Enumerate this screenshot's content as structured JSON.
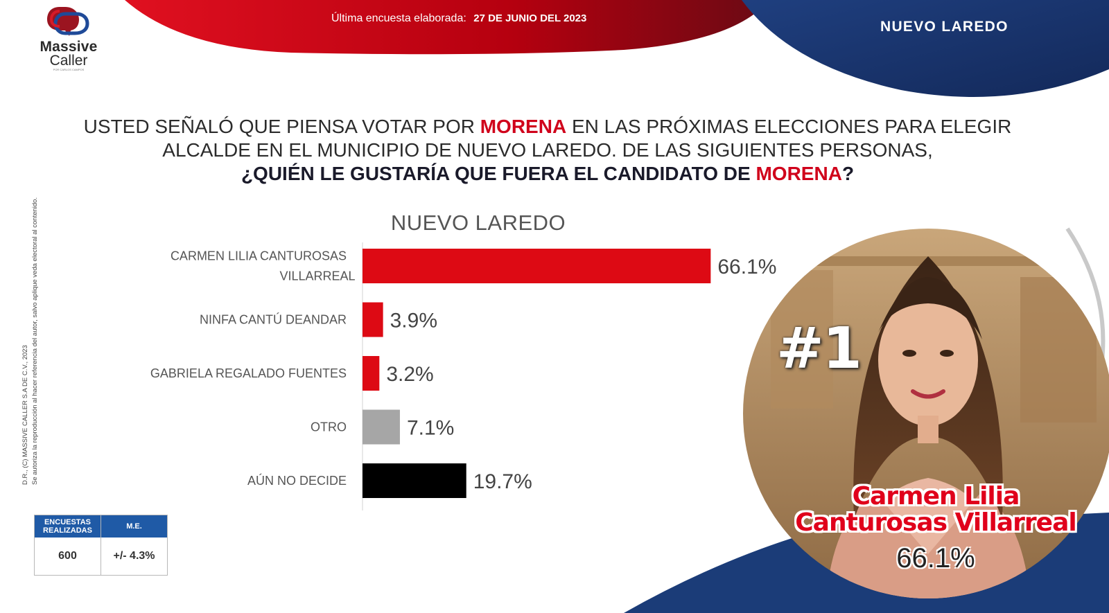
{
  "logo": {
    "line1": "Massive",
    "line2": "Caller",
    "tagline": "POR CARLOS CAMPOS"
  },
  "banner": {
    "label": "Última encuesta elaborada:",
    "date": "27 DE JUNIO  DEL 2023"
  },
  "region_title": "NUEVO LAREDO",
  "side_note": {
    "line1": "D.R., (C) MASSIVE CALLER S.A DE C.V., 2023",
    "line2": "Se autoriza la reproducción al hacer referencia del autor, salvo aplique veda electoral al contenido."
  },
  "question": {
    "p1": "USTED SEÑALÓ QUE PIENSA VOTAR POR ",
    "p1_red": "MORENA",
    "p1_end": " EN LAS PRÓXIMAS ELECCIONES PARA ELEGIR",
    "p2": "ALCALDE EN EL MUNICIPIO DE NUEVO LAREDO. DE LAS SIGUIENTES PERSONAS,",
    "p3": "¿QUIÉN LE GUSTARÍA QUE FUERA EL CANDIDATO DE ",
    "p3_red": "MORENA",
    "p3_end": "?"
  },
  "chart_data": {
    "type": "bar",
    "orientation": "horizontal",
    "title": "NUEVO LAREDO",
    "categories": [
      [
        "CARMEN LILIA CANTUROSAS",
        "VILLARREAL"
      ],
      [
        "NINFA CANTÚ DEANDAR"
      ],
      [
        "GABRIELA REGALADO FUENTES"
      ],
      [
        "OTRO"
      ],
      [
        "AÚN NO DECIDE"
      ]
    ],
    "values": [
      66.1,
      3.9,
      3.2,
      7.1,
      19.7
    ],
    "value_labels": [
      "66.1%",
      "3.9%",
      "3.2%",
      "7.1%",
      "19.7%"
    ],
    "colors": [
      "#dd0a14",
      "#dd0a14",
      "#dd0a14",
      "#a6a6a6",
      "#000000"
    ],
    "xlim": [
      0,
      100
    ],
    "grid": false,
    "legend": "none"
  },
  "highlight": {
    "rank": "#1",
    "name_line1": "Carmen Lilia",
    "name_line2": "Canturosas Villarreal",
    "pct": "66.1%"
  },
  "stats": {
    "col1_header": [
      "ENCUESTAS",
      "REALIZADAS"
    ],
    "col2_header": "M.E.",
    "sample_size": "600",
    "margin_error": "+/- 4.3%"
  },
  "colors": {
    "red": "#d0021b",
    "navy": "#1b3c78",
    "blue": "#1f5aa6"
  }
}
